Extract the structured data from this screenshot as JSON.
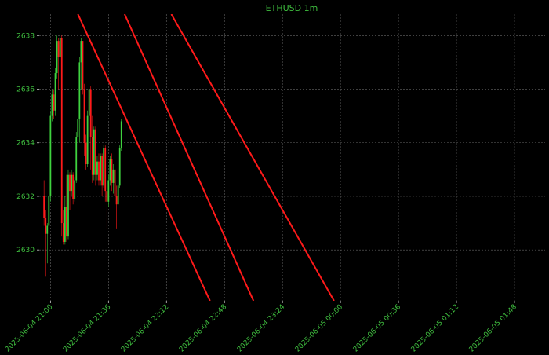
{
  "chart_data": {
    "type": "candlestick",
    "title": "ETHUSD 1m",
    "x": [
      "2025-06-04 20:56",
      "2025-06-04 20:57",
      "2025-06-04 20:58",
      "2025-06-04 20:59",
      "2025-06-04 21:00",
      "2025-06-04 21:01",
      "2025-06-04 21:02",
      "2025-06-04 21:03",
      "2025-06-04 21:04",
      "2025-06-04 21:05",
      "2025-06-04 21:06",
      "2025-06-04 21:07",
      "2025-06-04 21:08",
      "2025-06-04 21:09",
      "2025-06-04 21:10",
      "2025-06-04 21:11",
      "2025-06-04 21:12",
      "2025-06-04 21:13",
      "2025-06-04 21:14",
      "2025-06-04 21:15",
      "2025-06-04 21:16",
      "2025-06-04 21:17",
      "2025-06-04 21:18",
      "2025-06-04 21:19",
      "2025-06-04 21:20",
      "2025-06-04 21:21",
      "2025-06-04 21:22",
      "2025-06-04 21:23",
      "2025-06-04 21:24",
      "2025-06-04 21:25",
      "2025-06-04 21:26",
      "2025-06-04 21:27",
      "2025-06-04 21:28",
      "2025-06-04 21:29",
      "2025-06-04 21:30",
      "2025-06-04 21:31",
      "2025-06-04 21:32",
      "2025-06-04 21:33",
      "2025-06-04 21:34",
      "2025-06-04 21:35",
      "2025-06-04 21:36",
      "2025-06-04 21:37",
      "2025-06-04 21:38",
      "2025-06-04 21:39",
      "2025-06-04 21:40",
      "2025-06-04 21:41",
      "2025-06-04 21:42",
      "2025-06-04 21:43",
      "2025-06-04 21:44"
    ],
    "open": [
      2632.0,
      2631.2,
      2630.6,
      2630.9,
      2632.0,
      2635.0,
      2635.8,
      2635.2,
      2636.6,
      2637.8,
      2637.2,
      2637.9,
      2631.0,
      2630.3,
      2631.6,
      2630.5,
      2632.8,
      2632.2,
      2632.8,
      2631.9,
      2632.6,
      2634.2,
      2634.9,
      2637.0,
      2637.8,
      2636.0,
      2634.0,
      2633.2,
      2635.0,
      2636.0,
      2634.2,
      2632.8,
      2634.5,
      2632.8,
      2633.3,
      2632.6,
      2633.5,
      2632.4,
      2633.8,
      2632.2,
      2631.8,
      2632.6,
      2633.4,
      2632.5,
      2633.0,
      2632.0,
      2631.7,
      2632.4,
      2633.8
    ],
    "high": [
      2632.6,
      2631.5,
      2631.0,
      2632.2,
      2635.2,
      2636.0,
      2636.0,
      2636.8,
      2638.0,
      2637.9,
      2638.0,
      2638.0,
      2631.5,
      2632.0,
      2632.8,
      2633.0,
      2632.9,
      2633.0,
      2632.9,
      2632.7,
      2634.4,
      2635.0,
      2637.2,
      2637.9,
      2637.8,
      2636.2,
      2634.3,
      2635.2,
      2636.1,
      2636.1,
      2635.0,
      2634.6,
      2634.6,
      2633.5,
      2633.6,
      2633.6,
      2633.6,
      2633.9,
      2633.9,
      2632.5,
      2632.8,
      2633.5,
      2633.6,
      2633.2,
      2633.1,
      2632.4,
      2632.5,
      2633.9,
      2634.9
    ],
    "low": [
      2630.9,
      2629.0,
      2629.5,
      2630.6,
      2631.8,
      2634.8,
      2634.9,
      2635.0,
      2636.4,
      2636.0,
      2637.0,
      2630.5,
      2630.2,
      2630.2,
      2630.3,
      2630.4,
      2631.5,
      2632.0,
      2631.7,
      2631.8,
      2632.5,
      2631.3,
      2634.0,
      2636.0,
      2635.8,
      2633.5,
      2633.0,
      2633.1,
      2634.8,
      2633.0,
      2632.5,
      2632.6,
      2632.4,
      2632.6,
      2632.4,
      2632.4,
      2632.0,
      2632.3,
      2631.8,
      2630.8,
      2631.6,
      2632.4,
      2632.2,
      2632.1,
      2631.8,
      2630.8,
      2631.6,
      2632.3,
      2633.7
    ],
    "close": [
      2631.2,
      2630.6,
      2630.9,
      2632.0,
      2635.0,
      2635.8,
      2635.2,
      2636.6,
      2637.8,
      2637.2,
      2637.9,
      2631.0,
      2630.3,
      2631.6,
      2630.5,
      2632.8,
      2632.2,
      2632.8,
      2631.9,
      2632.6,
      2634.2,
      2634.9,
      2637.0,
      2637.8,
      2636.0,
      2634.0,
      2633.2,
      2635.0,
      2636.0,
      2634.2,
      2632.8,
      2634.5,
      2632.8,
      2633.3,
      2632.6,
      2633.5,
      2632.4,
      2633.8,
      2632.2,
      2631.8,
      2632.6,
      2633.4,
      2632.5,
      2633.0,
      2632.0,
      2631.7,
      2632.4,
      2633.8,
      2634.8
    ],
    "up_color": "#3fd23f",
    "down_color": "#ff1a1a",
    "lines": [
      {
        "x": [
          "2025-06-04 21:17",
          "2025-06-04 22:39"
        ],
        "y": [
          2638.8,
          2628.1
        ],
        "color": "#ff1a1a"
      },
      {
        "x": [
          "2025-06-04 21:46",
          "2025-06-04 23:06"
        ],
        "y": [
          2638.8,
          2628.1
        ],
        "color": "#ff1a1a"
      },
      {
        "x": [
          "2025-06-04 22:15",
          "2025-06-04 23:56"
        ],
        "y": [
          2638.8,
          2628.1
        ],
        "color": "#ff1a1a"
      }
    ],
    "xlim": [
      "2025-06-04 20:53",
      "2025-06-05 02:07"
    ],
    "xticks": [
      "2025-06-04 21:00",
      "2025-06-04 21:36",
      "2025-06-04 22:12",
      "2025-06-04 22:48",
      "2025-06-04 23:24",
      "2025-06-05 00:00",
      "2025-06-05 00:36",
      "2025-06-05 01:12",
      "2025-06-05 01:48"
    ],
    "ylim": [
      2628.1,
      2638.8
    ],
    "yticks": [
      2630,
      2632,
      2634,
      2636,
      2638
    ],
    "grid": true
  }
}
